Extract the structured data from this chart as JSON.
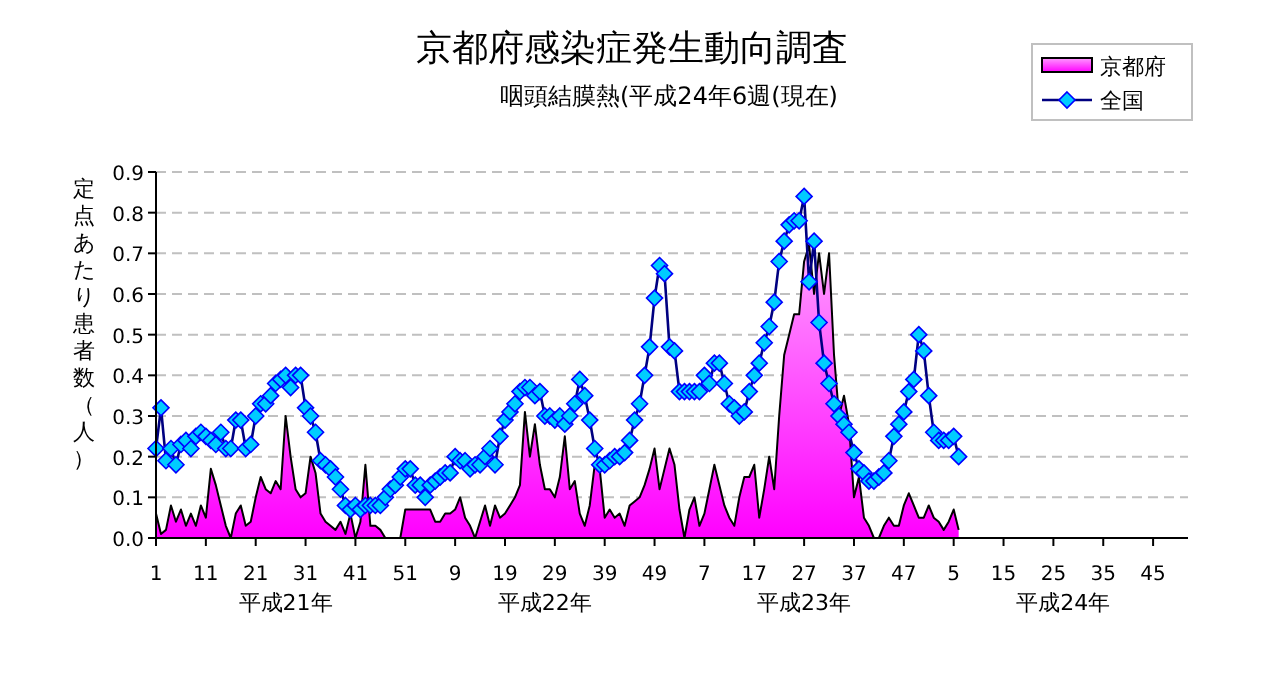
{
  "chart_data": {
    "type": "area",
    "title": "京都府感染症発生動向調査",
    "subtitle": "咽頭結膜熱(平成24年6週(現在)",
    "ylabel": "定点あたり患者数（人）",
    "categories": [
      "1",
      null,
      null,
      null,
      null,
      null,
      null,
      null,
      null,
      null,
      "11",
      null,
      null,
      null,
      null,
      null,
      null,
      null,
      null,
      null,
      "21",
      null,
      null,
      null,
      null,
      null,
      null,
      null,
      null,
      null,
      "31",
      null,
      null,
      null,
      null,
      null,
      null,
      null,
      null,
      null,
      "41",
      null,
      null,
      null,
      null,
      null,
      null,
      null,
      null,
      null,
      "51",
      null,
      null,
      null,
      null,
      null,
      null,
      null,
      null,
      null,
      "9",
      null,
      null,
      null,
      null,
      null,
      null,
      null,
      null,
      null,
      "19",
      null,
      null,
      null,
      null,
      null,
      null,
      null,
      null,
      null,
      "29",
      null,
      null,
      null,
      null,
      null,
      null,
      null,
      null,
      null,
      "39",
      null,
      null,
      null,
      null,
      null,
      null,
      null,
      null,
      null,
      "49",
      null,
      null,
      null,
      null,
      null,
      null,
      null,
      null,
      null,
      "7",
      null,
      null,
      null,
      null,
      null,
      null,
      null,
      null,
      null,
      "17",
      null,
      null,
      null,
      null,
      null,
      null,
      null,
      null,
      null,
      "27",
      null,
      null,
      null,
      null,
      null,
      null,
      null,
      null,
      null,
      "37",
      null,
      null,
      null,
      null,
      null,
      null,
      null,
      null,
      null,
      "47",
      null,
      null,
      null,
      null,
      null,
      null,
      null,
      null,
      null,
      "5",
      null,
      null,
      null,
      null,
      null,
      null,
      null,
      null,
      null,
      "15",
      null,
      null,
      null,
      null,
      null,
      null,
      null,
      null,
      null,
      "25",
      null,
      null,
      null,
      null,
      null,
      null,
      null,
      null,
      null,
      "35",
      null,
      null,
      null,
      null,
      null,
      null,
      null,
      null,
      null,
      "45",
      null,
      null,
      null,
      null,
      null,
      null,
      null
    ],
    "series": [
      {
        "name": "京都府",
        "color": "#ff00ff",
        "values": [
          0.06,
          0.01,
          0.02,
          0.08,
          0.04,
          0.07,
          0.03,
          0.06,
          0.03,
          0.08,
          0.05,
          0.17,
          0.13,
          0.08,
          0.03,
          0.0,
          0.06,
          0.08,
          0.03,
          0.04,
          0.1,
          0.15,
          0.12,
          0.11,
          0.14,
          0.12,
          0.3,
          0.2,
          0.12,
          0.1,
          0.11,
          0.2,
          0.16,
          0.06,
          0.04,
          0.03,
          0.02,
          0.04,
          0.01,
          0.06,
          0.0,
          0.04,
          0.18,
          0.03,
          0.03,
          0.02,
          0.0,
          0.0,
          0.0,
          0.0,
          0.07,
          0.07,
          0.07,
          0.07,
          0.07,
          0.07,
          0.04,
          0.04,
          0.06,
          0.06,
          0.07,
          0.1,
          0.05,
          0.03,
          0.0,
          0.04,
          0.08,
          0.03,
          0.08,
          0.05,
          0.06,
          0.08,
          0.1,
          0.13,
          0.31,
          0.2,
          0.28,
          0.18,
          0.12,
          0.12,
          0.1,
          0.15,
          0.25,
          0.12,
          0.14,
          0.06,
          0.03,
          0.08,
          0.18,
          0.17,
          0.05,
          0.07,
          0.05,
          0.06,
          0.03,
          0.08,
          0.09,
          0.1,
          0.13,
          0.17,
          0.22,
          0.12,
          0.17,
          0.22,
          0.18,
          0.07,
          0.0,
          0.07,
          0.1,
          0.03,
          0.06,
          0.12,
          0.18,
          0.13,
          0.08,
          0.05,
          0.03,
          0.1,
          0.15,
          0.15,
          0.18,
          0.05,
          0.12,
          0.2,
          0.12,
          0.3,
          0.45,
          0.5,
          0.55,
          0.55,
          0.68,
          0.72,
          0.6,
          0.7,
          0.6,
          0.7,
          0.45,
          0.3,
          0.35,
          0.28,
          0.1,
          0.15,
          0.05,
          0.03,
          0.0,
          0.0,
          0.03,
          0.05,
          0.03,
          0.03,
          0.08,
          0.11,
          0.08,
          0.05,
          0.05,
          0.08,
          0.05,
          0.04,
          0.02,
          0.04,
          0.07,
          0.02,
          null,
          null,
          null,
          null,
          null,
          null,
          null,
          null,
          null,
          null,
          null,
          null,
          null,
          null,
          null,
          null,
          null,
          null,
          null,
          null,
          null,
          null,
          null,
          null,
          null,
          null,
          null,
          null,
          null,
          null,
          null,
          null,
          null,
          null,
          null,
          null,
          null,
          null,
          null,
          null,
          null,
          null,
          null,
          null,
          null,
          null
        ]
      },
      {
        "name": "全国",
        "type": "line",
        "color": "#00ccff",
        "marker": "diamond",
        "values": [
          0.22,
          0.32,
          0.19,
          0.22,
          0.18,
          0.23,
          0.24,
          0.22,
          0.25,
          0.26,
          0.25,
          0.24,
          0.23,
          0.26,
          0.22,
          0.22,
          0.29,
          0.29,
          0.22,
          0.23,
          0.3,
          0.33,
          0.33,
          0.35,
          0.38,
          0.39,
          0.4,
          0.37,
          0.4,
          0.4,
          0.32,
          0.3,
          0.26,
          0.19,
          0.18,
          0.17,
          0.15,
          0.12,
          0.08,
          0.07,
          0.08,
          0.07,
          0.08,
          0.08,
          0.08,
          0.08,
          0.1,
          0.12,
          0.13,
          0.15,
          0.17,
          0.17,
          0.13,
          0.13,
          0.1,
          0.13,
          0.14,
          0.15,
          0.16,
          0.16,
          0.2,
          0.19,
          0.19,
          0.17,
          0.18,
          0.18,
          0.2,
          0.22,
          0.18,
          0.25,
          0.29,
          0.31,
          0.33,
          0.36,
          0.37,
          0.37,
          0.35,
          0.36,
          0.3,
          0.3,
          0.29,
          0.3,
          0.28,
          0.3,
          0.33,
          0.39,
          0.35,
          0.29,
          0.22,
          0.18,
          0.18,
          0.19,
          0.2,
          0.2,
          0.21,
          0.24,
          0.29,
          0.33,
          0.4,
          0.47,
          0.59,
          0.67,
          0.65,
          0.47,
          0.46,
          0.36,
          0.36,
          0.36,
          0.36,
          0.36,
          0.4,
          0.38,
          0.43,
          0.43,
          0.38,
          0.33,
          0.32,
          0.3,
          0.31,
          0.36,
          0.4,
          0.43,
          0.48,
          0.52,
          0.58,
          0.68,
          0.73,
          0.77,
          0.78,
          0.78,
          0.84,
          0.63,
          0.73,
          0.53,
          0.43,
          0.38,
          0.33,
          0.3,
          0.28,
          0.26,
          0.21,
          0.17,
          0.16,
          0.14,
          0.14,
          0.15,
          0.16,
          0.19,
          0.25,
          0.28,
          0.31,
          0.36,
          0.39,
          0.5,
          0.46,
          0.35,
          0.26,
          0.24,
          0.24,
          0.24,
          0.25,
          0.2,
          null,
          null,
          null,
          null,
          null,
          null,
          null,
          null,
          null,
          null,
          null,
          null,
          null,
          null,
          null,
          null,
          null,
          null,
          null,
          null,
          null,
          null,
          null,
          null,
          null,
          null,
          null,
          null,
          null,
          null,
          null,
          null,
          null,
          null,
          null,
          null,
          null,
          null,
          null,
          null,
          null,
          null,
          null,
          null,
          null,
          null
        ]
      }
    ],
    "ylim": [
      0,
      0.9
    ],
    "yticks": [
      {
        "value": 0,
        "label": "0.0"
      },
      0.1,
      0.2,
      0.3,
      0.4,
      0.5,
      0.6,
      0.7,
      0.8,
      0.9
    ],
    "annotations": [
      "平成21年",
      "平成22年",
      "平成23年",
      "平成24年"
    ],
    "grid": "y",
    "legend": "top right",
    "line_style": "solid"
  }
}
